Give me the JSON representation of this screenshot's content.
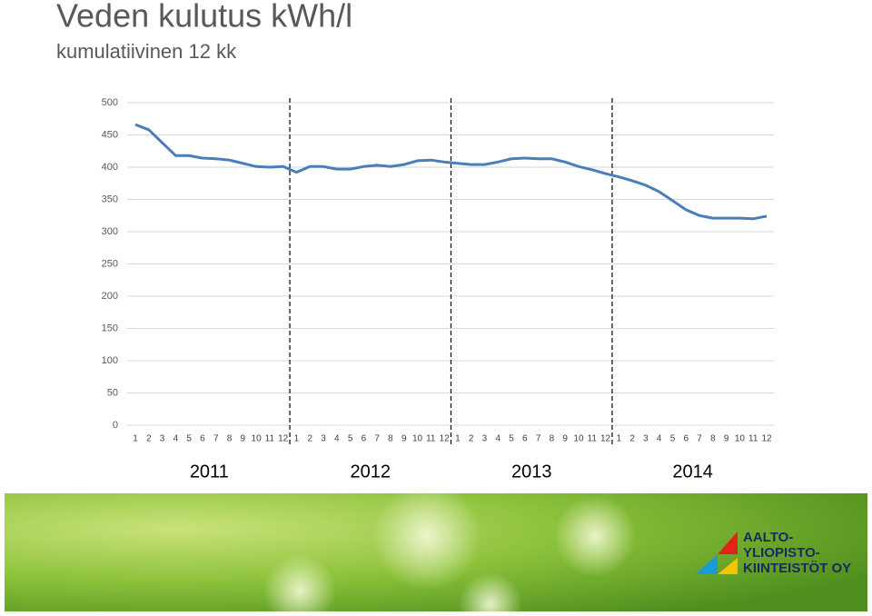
{
  "chart_data": {
    "type": "line",
    "title": "Veden kulutus kWh/l",
    "subtitle": "kumulatiivinen 12 kk",
    "categories": [
      "1",
      "2",
      "3",
      "4",
      "5",
      "6",
      "7",
      "8",
      "9",
      "10",
      "11",
      "12",
      "1",
      "2",
      "3",
      "4",
      "5",
      "6",
      "7",
      "8",
      "9",
      "10",
      "11",
      "12",
      "1",
      "2",
      "3",
      "4",
      "5",
      "6",
      "7",
      "8",
      "9",
      "10",
      "11",
      "12",
      "1",
      "2",
      "3",
      "4",
      "5",
      "6",
      "7",
      "8",
      "9",
      "10",
      "11",
      "12"
    ],
    "groups": [
      "2011",
      "2012",
      "2013",
      "2014"
    ],
    "series": [
      {
        "color": "#4a7ebb",
        "values": [
          466,
          458,
          438,
          418,
          418,
          414,
          413,
          411,
          406,
          401,
          400,
          401,
          392,
          401,
          401,
          397,
          397,
          401,
          403,
          401,
          404,
          410,
          411,
          408,
          406,
          404,
          404,
          408,
          413,
          414,
          413,
          413,
          408,
          401,
          396,
          390,
          385,
          379,
          372,
          362,
          348,
          334,
          325,
          321,
          321,
          321,
          320,
          324
        ]
      }
    ],
    "ylim": [
      0,
      500
    ],
    "yticks": [
      0,
      50,
      100,
      150,
      200,
      250,
      300,
      350,
      400,
      450,
      500
    ],
    "grid": true
  },
  "footer": {
    "logo_lines": [
      "AALTO-",
      "YLIOPISTO-",
      "KIINTEISTÖT OY"
    ]
  }
}
